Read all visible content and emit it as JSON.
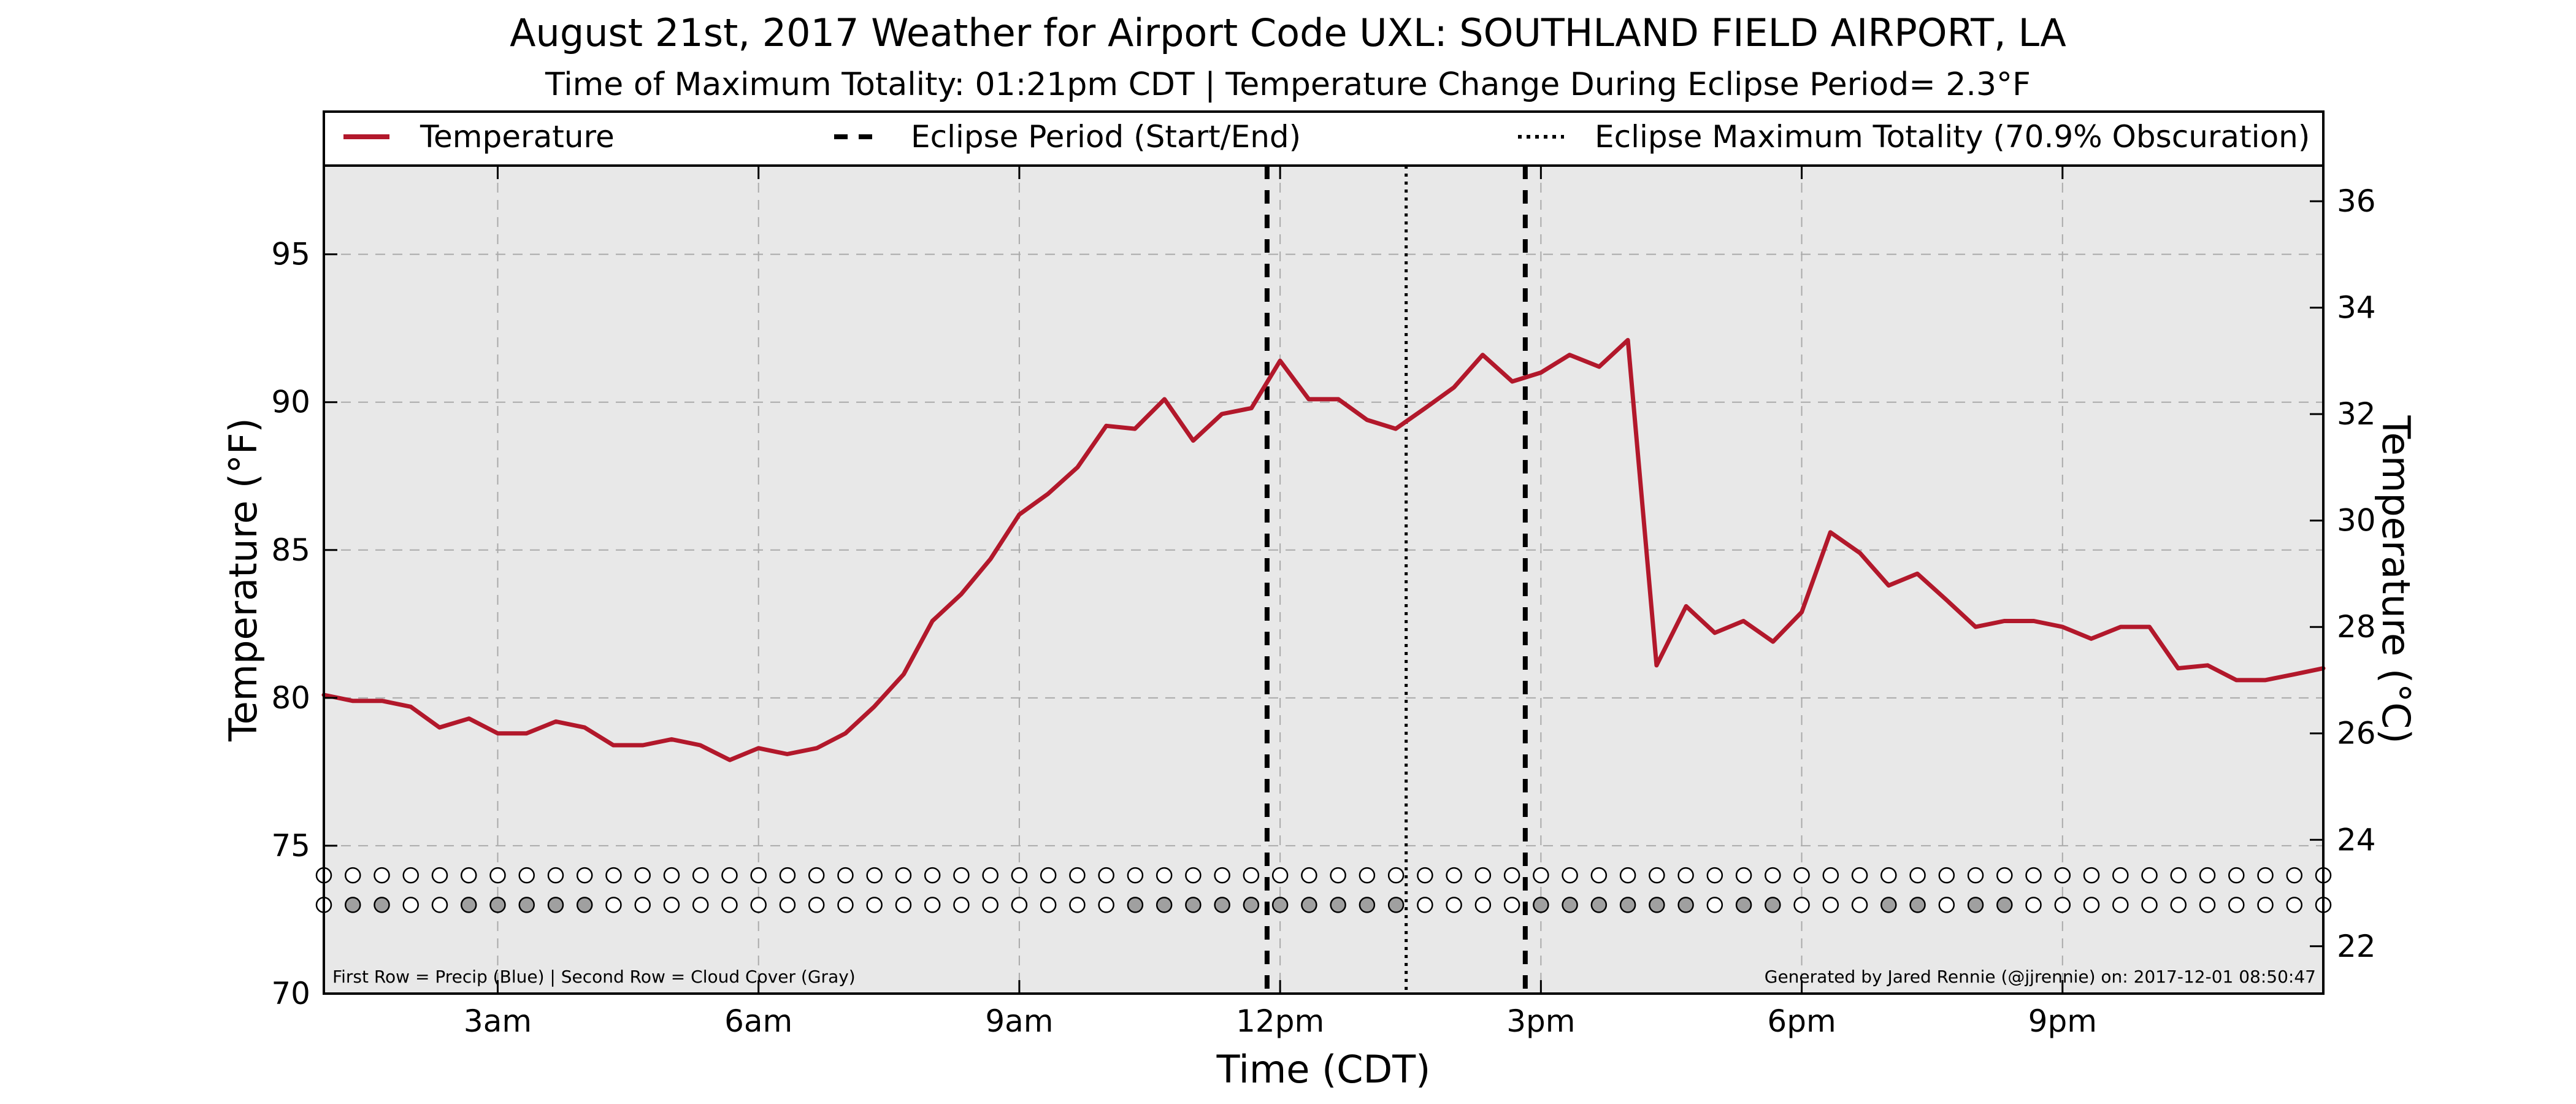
{
  "chart_data": {
    "type": "line",
    "title": "August 21st, 2017 Weather for Airport Code UXL: SOUTHLAND FIELD AIRPORT, LA",
    "subtitle": "Time of Maximum Totality: 01:21pm CDT | Temperature Change During Eclipse Period= 2.3°F",
    "xlabel": "Time (CDT)",
    "ylabel": "Temperature (°F)",
    "ylabel_right": "Temperature (°C)",
    "xlim": [
      1,
      24
    ],
    "ylim": [
      70,
      98
    ],
    "ylim_right": [
      21.11,
      36.67
    ],
    "x_ticks": [
      3,
      6,
      9,
      12,
      15,
      18,
      21
    ],
    "x_tick_labels": [
      "3am",
      "6am",
      "9am",
      "12pm",
      "3pm",
      "6pm",
      "9pm"
    ],
    "y_ticks": [
      70,
      75,
      80,
      85,
      90,
      95
    ],
    "y_ticks_right": [
      22,
      24,
      26,
      28,
      30,
      32,
      34,
      36
    ],
    "grid": true,
    "legend_position": "top",
    "series": [
      {
        "name": "Temperature",
        "color": "#b2182b",
        "x": [
          1.0,
          1.33,
          1.67,
          2.0,
          2.33,
          2.67,
          3.0,
          3.33,
          3.67,
          4.0,
          4.33,
          4.67,
          5.0,
          5.33,
          5.67,
          6.0,
          6.33,
          6.67,
          7.0,
          7.33,
          7.67,
          8.0,
          8.33,
          8.67,
          9.0,
          9.33,
          9.67,
          10.0,
          10.33,
          10.67,
          11.0,
          11.33,
          11.67,
          12.0,
          12.33,
          12.67,
          13.0,
          13.33,
          13.67,
          14.0,
          14.33,
          14.67,
          15.0,
          15.33,
          15.67,
          16.0,
          16.33,
          16.67,
          17.0,
          17.33,
          17.67,
          18.0,
          18.33,
          18.67,
          19.0,
          19.33,
          19.67,
          20.0,
          20.33,
          20.67,
          21.0,
          21.33,
          21.67,
          22.0,
          22.33,
          22.67,
          23.0,
          23.33,
          23.67,
          24.0
        ],
        "y": [
          80.1,
          79.9,
          79.9,
          79.7,
          79.0,
          79.3,
          78.8,
          78.8,
          79.2,
          79.0,
          78.4,
          78.4,
          78.6,
          78.4,
          77.9,
          78.3,
          78.1,
          78.3,
          78.8,
          79.7,
          80.8,
          82.6,
          83.5,
          84.7,
          86.2,
          86.9,
          87.8,
          89.2,
          89.1,
          90.1,
          88.7,
          89.6,
          89.8,
          91.4,
          90.1,
          90.1,
          89.4,
          89.1,
          89.8,
          90.5,
          91.6,
          90.7,
          91.0,
          91.6,
          91.2,
          92.1,
          81.1,
          83.1,
          82.2,
          82.6,
          81.9,
          82.9,
          85.6,
          84.9,
          83.8,
          84.2,
          83.3,
          82.4,
          82.6,
          82.6,
          82.4,
          82.0,
          82.4,
          82.4,
          81.0,
          81.1,
          80.6,
          80.6,
          80.8,
          81.0
        ]
      }
    ],
    "eclipse": {
      "label": "Eclipse Period (Start/End)",
      "start": 11.85,
      "end": 14.82,
      "max_label": "Eclipse Maximum Totality (70.9% Obscuration)",
      "max": 13.45
    },
    "markers": {
      "x_start": 1.0,
      "x_end": 24.0,
      "step": 0.333,
      "precip_y": 74.0,
      "cloud_y": 73.0,
      "precip_color": "#ffffff",
      "cloud_colors": {
        "empty": "#ffffff",
        "filled": "#a0a0a0"
      },
      "cloud_filled": [
        0,
        1,
        1,
        0,
        0,
        1,
        1,
        1,
        1,
        1,
        0,
        0,
        0,
        0,
        0,
        0,
        0,
        0,
        0,
        0,
        0,
        0,
        0,
        0,
        0,
        0,
        0,
        0,
        1,
        1,
        1,
        1,
        1,
        1,
        1,
        1,
        1,
        1,
        0,
        0,
        0,
        0,
        1,
        1,
        1,
        1,
        1,
        1,
        0,
        1,
        1,
        0,
        0,
        0,
        1,
        1,
        0,
        1,
        1,
        0,
        0,
        0,
        0,
        0,
        0,
        0,
        0,
        0,
        0,
        0
      ]
    },
    "plot_background": "#e8e8e8",
    "footnote_left": "First Row = Precip (Blue) | Second Row = Cloud Cover (Gray)",
    "footnote_right": "Generated by Jared Rennie (@jjrennie) on: 2017-12-01 08:50:47"
  }
}
